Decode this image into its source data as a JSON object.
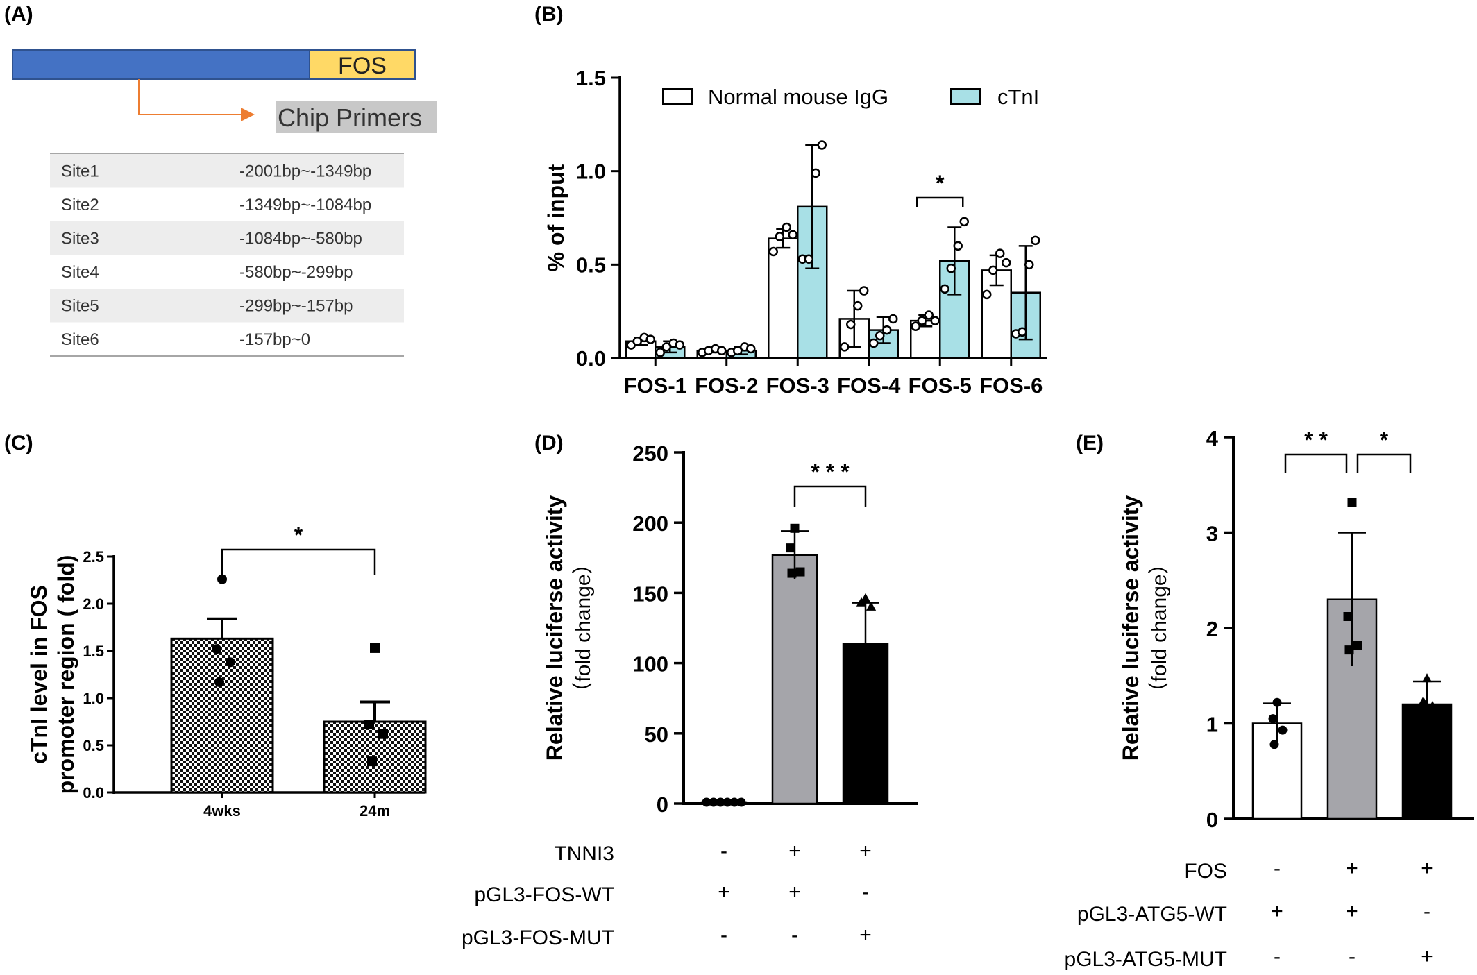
{
  "panels": {
    "A": {
      "label": "(A)",
      "gene_label": "FOS",
      "primer_label": "Chip Primers",
      "colors": {
        "promoter": "#4472C4",
        "gene": "#FFD966",
        "arrow": "#ED7D31",
        "primer_bg": "#C8C8C8"
      },
      "table": [
        {
          "site": "Site1",
          "range": "-2001bp~-1349bp"
        },
        {
          "site": "Site2",
          "range": "-1349bp~-1084bp"
        },
        {
          "site": "Site3",
          "range": "-1084bp~-580bp"
        },
        {
          "site": "Site4",
          "range": "-580bp~-299bp"
        },
        {
          "site": "Site5",
          "range": "-299bp~-157bp"
        },
        {
          "site": "Site6",
          "range": "-157bp~0"
        }
      ]
    },
    "B": {
      "label": "(B)"
    },
    "C": {
      "label": "(C)"
    },
    "D": {
      "label": "(D)"
    },
    "E": {
      "label": "(E)"
    }
  },
  "chart_data": [
    {
      "panel": "B",
      "type": "bar",
      "ylabel": "% of input",
      "ylim": [
        0,
        1.5
      ],
      "yticks": [
        "0.0",
        "0.5",
        "1.0",
        "1.5"
      ],
      "categories": [
        "FOS-1",
        "FOS-2",
        "FOS-3",
        "FOS-4",
        "FOS-5",
        "FOS-6"
      ],
      "legend": [
        "Normal mouse IgG",
        "cTnI"
      ],
      "colors": {
        "igg": "#FFFFFF",
        "ctni": "#A8E0E6"
      },
      "series": [
        {
          "name": "Normal mouse IgG",
          "values": [
            0.09,
            0.04,
            0.64,
            0.21,
            0.2,
            0.47
          ],
          "errors": [
            0.02,
            0.01,
            0.05,
            0.15,
            0.03,
            0.08
          ],
          "points": [
            [
              0.07,
              0.09,
              0.11,
              0.1
            ],
            [
              0.03,
              0.04,
              0.05,
              0.04
            ],
            [
              0.57,
              0.65,
              0.7,
              0.66
            ],
            [
              0.06,
              0.18,
              0.28,
              0.36
            ],
            [
              0.17,
              0.2,
              0.23,
              0.2
            ],
            [
              0.34,
              0.47,
              0.56,
              0.51
            ]
          ]
        },
        {
          "name": "cTnI",
          "values": [
            0.06,
            0.04,
            0.81,
            0.15,
            0.52,
            0.35
          ],
          "errors": [
            0.03,
            0.02,
            0.33,
            0.07,
            0.18,
            0.25
          ],
          "points": [
            [
              0.03,
              0.06,
              0.08,
              0.07
            ],
            [
              0.03,
              0.04,
              0.06,
              0.05
            ],
            [
              0.53,
              0.53,
              0.99,
              1.14
            ],
            [
              0.08,
              0.12,
              0.15,
              0.21
            ],
            [
              0.37,
              0.48,
              0.6,
              0.73
            ],
            [
              0.13,
              0.14,
              0.5,
              0.63
            ]
          ]
        }
      ],
      "significance": [
        {
          "category_index": 4,
          "label": "*"
        }
      ]
    },
    {
      "panel": "C",
      "type": "bar",
      "ylabel_lines": [
        "cTnI level in FOS",
        "promoter region ( fold)"
      ],
      "ylim": [
        0,
        2.5
      ],
      "yticks": [
        "0.0",
        "0.5",
        "1.0",
        "1.5",
        "2.0",
        "2.5"
      ],
      "categories": [
        "4wks",
        "24m"
      ],
      "values": [
        1.63,
        0.75
      ],
      "errors": [
        0.21,
        0.21
      ],
      "points": [
        [
          2.26,
          1.52,
          1.38,
          1.17
        ],
        [
          1.53,
          0.72,
          0.62,
          0.33
        ]
      ],
      "markers": [
        "circle",
        "square"
      ],
      "significance": [
        {
          "pair": [
            0,
            1
          ],
          "label": "*"
        }
      ]
    },
    {
      "panel": "D",
      "type": "bar",
      "ylabel_lines": [
        "Relative luciferse activity",
        "（fold change）"
      ],
      "ylim": [
        0,
        250
      ],
      "yticks": [
        "0",
        "50",
        "100",
        "150",
        "200",
        "250"
      ],
      "values": [
        1,
        177,
        114
      ],
      "errors": [
        0.5,
        17,
        29
      ],
      "points": [
        [
          1,
          1,
          1,
          1,
          1,
          1
        ],
        [
          196,
          182,
          165,
          164
        ],
        [
          146,
          143,
          140
        ]
      ],
      "markers": [
        "circle",
        "square",
        "triangle"
      ],
      "colors": [
        "#FFFFFF",
        "#A5A5AA",
        "#000000"
      ],
      "conditions": [
        {
          "name": "TNNI3",
          "signs": [
            "-",
            "+",
            "+"
          ]
        },
        {
          "name": "pGL3-FOS-WT",
          "signs": [
            "+",
            "+",
            "-"
          ]
        },
        {
          "name": "pGL3-FOS-MUT",
          "signs": [
            "-",
            "-",
            "+"
          ]
        }
      ],
      "significance": [
        {
          "pair": [
            1,
            2
          ],
          "label": "* * *"
        }
      ]
    },
    {
      "panel": "E",
      "type": "bar",
      "ylabel_lines": [
        "Relative luciferse activity",
        "（fold change）"
      ],
      "ylim": [
        0,
        4
      ],
      "yticks": [
        "0",
        "1",
        "2",
        "3",
        "4"
      ],
      "values": [
        1.0,
        2.3,
        1.2
      ],
      "errors": [
        0.21,
        0.7,
        0.24
      ],
      "points": [
        [
          1.22,
          1.05,
          0.93,
          0.78
        ],
        [
          3.32,
          2.12,
          1.82,
          1.77
        ],
        [
          1.47,
          1.22,
          1.18,
          1.21
        ]
      ],
      "markers": [
        "circle",
        "square",
        "triangle"
      ],
      "colors": [
        "#FFFFFF",
        "#A5A5AA",
        "#000000"
      ],
      "conditions": [
        {
          "name": "FOS",
          "signs": [
            "-",
            "+",
            "+"
          ]
        },
        {
          "name": "pGL3-ATG5-WT",
          "signs": [
            "+",
            "+",
            "-"
          ]
        },
        {
          "name": "pGL3-ATG5-MUT",
          "signs": [
            "-",
            "-",
            "+"
          ]
        }
      ],
      "significance": [
        {
          "pair": [
            0,
            1
          ],
          "label": "* *"
        },
        {
          "pair": [
            1,
            2
          ],
          "label": "*"
        }
      ]
    }
  ]
}
